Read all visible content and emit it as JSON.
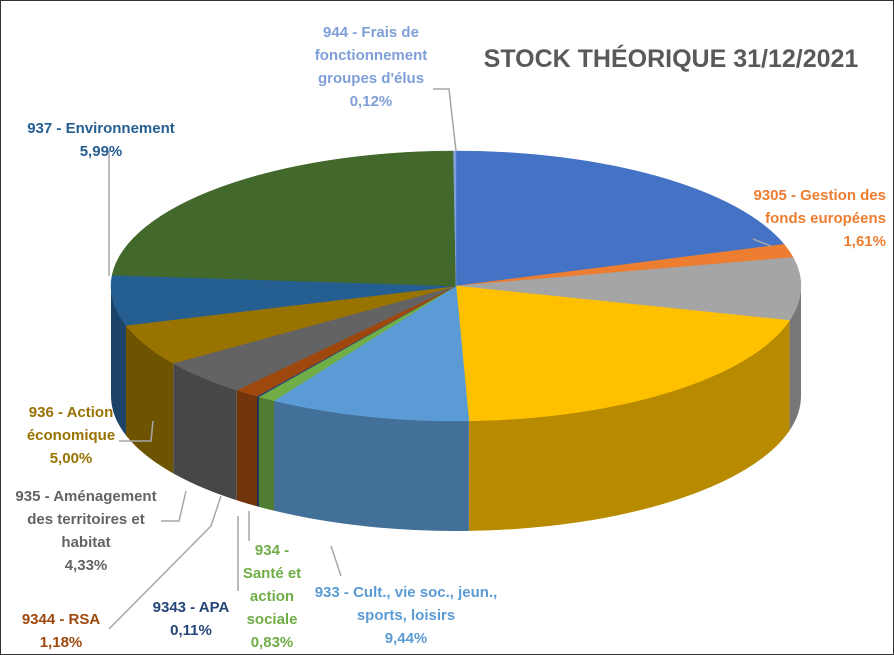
{
  "chart_data": {
    "type": "pie3d",
    "title": "STOCK THÉORIQUE 31/12/2021",
    "categories": [
      null,
      "9305 - Gestion des fonds européens",
      null,
      null,
      "933 - Cult., vie soc., jeun., sports, loisirs",
      "934 - Santé et action sociale",
      "9343 - APA",
      "9344 - RSA",
      "935 - Aménagement des territoires et habitat",
      "936 - Action économique",
      "937 - Environnement",
      null,
      "944 - Frais de fonctionnement groupes d'élus"
    ],
    "values": [
      20.0,
      1.61,
      7.5,
      20.3,
      9.44,
      0.83,
      0.11,
      1.18,
      4.33,
      5.0,
      5.99,
      23.6,
      0.12
    ],
    "value_labels": [
      null,
      "1,61%",
      null,
      null,
      "9,44%",
      "0,83%",
      "0,11%",
      "1,18%",
      "4,33%",
      "5,00%",
      "5,99%",
      null,
      "0,12%"
    ],
    "colors": [
      "#4472c4",
      "#ed7d31",
      "#a5a5a5",
      "#ffc000",
      "#5b9bd5",
      "#70ad47",
      "#264478",
      "#9e480e",
      "#636363",
      "#997300",
      "#255e91",
      "#43682b",
      "#7f9fd8"
    ]
  }
}
